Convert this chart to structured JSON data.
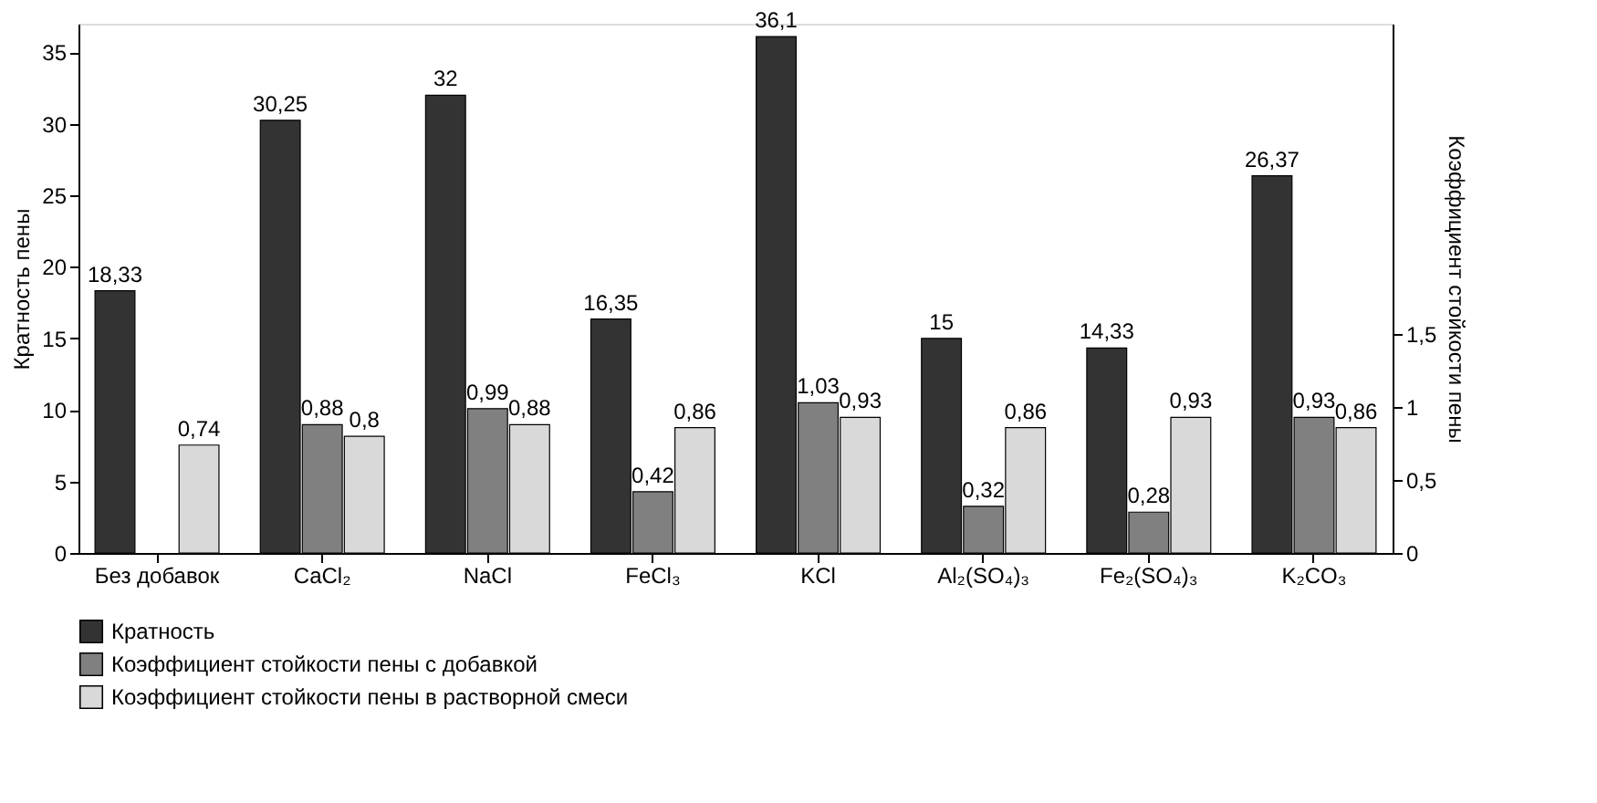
{
  "chart_data": {
    "type": "bar",
    "categories": [
      "Без добавок",
      "CaCl₂",
      "NaCl",
      "FeCl₃",
      "KCl",
      "Al₂(SO₄)₃",
      "Fe₂(SO₄)₃",
      "K₂CO₃"
    ],
    "ylabel": "Кратность пены",
    "y2label": "Коэффициент стойкости пены",
    "ylim": [
      0,
      37
    ],
    "yticks": [
      0,
      5,
      10,
      15,
      20,
      25,
      30,
      35
    ],
    "y2lim": [
      0,
      3.63
    ],
    "y2ticks": [
      0,
      {
        "value": 0.5,
        "label": "0,5"
      },
      1,
      {
        "value": 1.5,
        "label": "1,5"
      }
    ],
    "grid": false,
    "legend": "bottom",
    "series": [
      {
        "name": "Кратность",
        "color": "#333333",
        "values": [
          18.33,
          30.25,
          32,
          16.35,
          36.1,
          15,
          14.33,
          26.37
        ],
        "value_labels": [
          "18,33",
          "30,25",
          "32",
          "16,35",
          "36,1",
          "15",
          "14,33",
          "26,37"
        ]
      },
      {
        "name": "Коэффициент стойкости пены с добавкой",
        "color": "#808080",
        "axis": "y2",
        "values": [
          null,
          0.88,
          0.99,
          0.42,
          1.03,
          0.32,
          0.28,
          0.93
        ],
        "value_labels": [
          null,
          "0,88",
          "0,99",
          "0,42",
          "1,03",
          "0,32",
          "0,28",
          "0,93"
        ]
      },
      {
        "name": "Коэффициент стойкости пены в растворной смеси",
        "color": "#d9d9d9",
        "axis": "y2",
        "values": [
          0.74,
          0.8,
          0.88,
          0.86,
          0.93,
          0.86,
          0.93,
          0.86
        ],
        "value_labels": [
          "0,74",
          "0,8",
          "0,88",
          "0,86",
          "0,93",
          "0,86",
          "0,93",
          "0,86"
        ]
      }
    ]
  }
}
